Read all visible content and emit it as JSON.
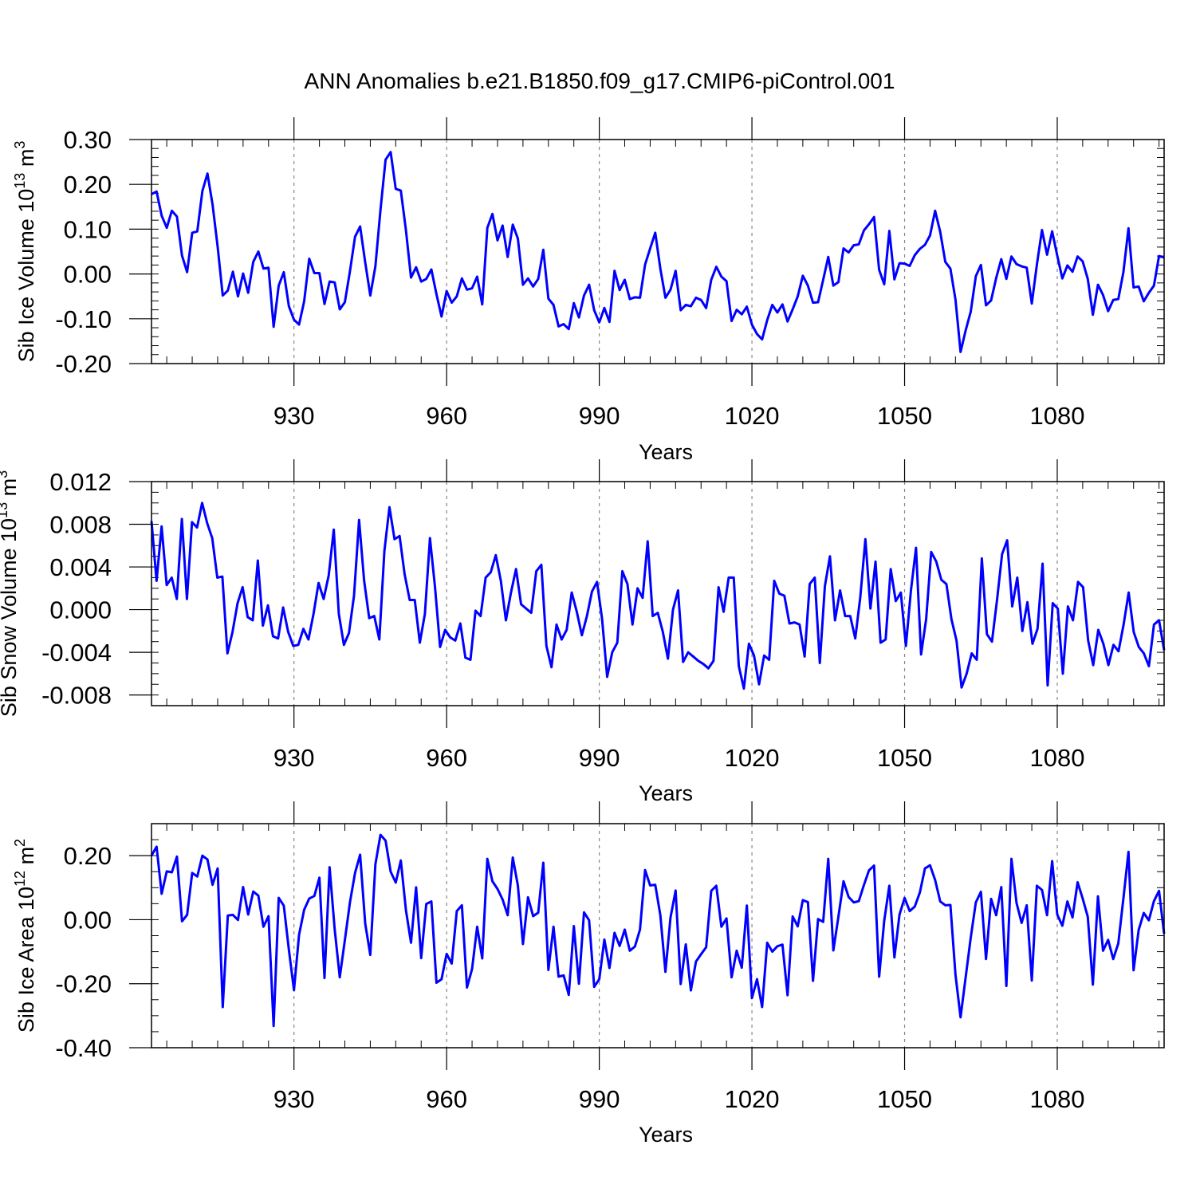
{
  "title": "ANN Anomalies b.e21.B1850.f09_g17.CMIP6-piControl.001",
  "colors": {
    "line": "#0000ff",
    "frame": "#000000",
    "grid": "#888888"
  },
  "chart_data": [
    {
      "type": "line",
      "ylabel": {
        "text": "Sib Ice Volume 10",
        "sup": "13",
        "unit": " m",
        "unit_sup": "3"
      },
      "xlabel": "Years",
      "x_start": 902,
      "x_end": 1101,
      "xlim": [
        902,
        1101
      ],
      "x_ticks": [
        930,
        960,
        990,
        1020,
        1050,
        1080
      ],
      "x_tick_labels": [
        "930",
        "960",
        "990",
        "1020",
        "1050",
        "1080"
      ],
      "ylim": [
        -0.2,
        0.3
      ],
      "y_ticks": [
        -0.2,
        -0.1,
        0.0,
        0.1,
        0.2,
        0.3
      ],
      "y_tick_labels": [
        "-0.20",
        "-0.10",
        "0.00",
        "0.10",
        "0.20",
        "0.30"
      ],
      "y_minor_step": 0.02,
      "values": [
        0.178,
        0.184,
        0.13,
        0.103,
        0.141,
        0.128,
        0.041,
        0.004,
        0.092,
        0.095,
        0.185,
        0.224,
        0.155,
        0.061,
        -0.048,
        -0.037,
        0.005,
        -0.05,
        0.001,
        -0.042,
        0.027,
        0.05,
        0.012,
        0.014,
        -0.118,
        -0.026,
        0.004,
        -0.072,
        -0.102,
        -0.113,
        -0.061,
        0.034,
        0.002,
        0.002,
        -0.067,
        -0.017,
        -0.019,
        -0.079,
        -0.063,
        0.006,
        0.083,
        0.106,
        0.026,
        -0.048,
        0.017,
        0.143,
        0.255,
        0.272,
        0.19,
        0.186,
        0.098,
        -0.008,
        0.015,
        -0.017,
        -0.011,
        0.01,
        -0.045,
        -0.095,
        -0.038,
        -0.064,
        -0.05,
        -0.01,
        -0.035,
        -0.032,
        -0.006,
        -0.068,
        0.103,
        0.134,
        0.075,
        0.108,
        0.038,
        0.11,
        0.079,
        -0.024,
        -0.01,
        -0.028,
        -0.011,
        0.054,
        -0.055,
        -0.069,
        -0.117,
        -0.112,
        -0.123,
        -0.065,
        -0.097,
        -0.048,
        -0.024,
        -0.081,
        -0.108,
        -0.076,
        -0.107,
        0.007,
        -0.036,
        -0.013,
        -0.056,
        -0.052,
        -0.053,
        0.021,
        0.057,
        0.092,
        0.012,
        -0.053,
        -0.035,
        0.007,
        -0.081,
        -0.069,
        -0.072,
        -0.053,
        -0.058,
        -0.076,
        -0.013,
        0.016,
        -0.006,
        -0.016,
        -0.105,
        -0.08,
        -0.09,
        -0.073,
        -0.113,
        -0.134,
        -0.146,
        -0.103,
        -0.069,
        -0.086,
        -0.068,
        -0.106,
        -0.079,
        -0.05,
        -0.004,
        -0.026,
        -0.064,
        -0.063,
        -0.013,
        0.038,
        -0.026,
        -0.018,
        0.057,
        0.048,
        0.064,
        0.066,
        0.097,
        0.111,
        0.127,
        0.009,
        -0.023,
        0.096,
        -0.012,
        0.024,
        0.023,
        0.018,
        0.042,
        0.056,
        0.065,
        0.086,
        0.141,
        0.094,
        0.027,
        0.012,
        -0.057,
        -0.174,
        -0.126,
        -0.084,
        -0.005,
        0.02,
        -0.07,
        -0.059,
        -0.009,
        0.033,
        -0.011,
        0.039,
        0.022,
        0.017,
        0.014,
        -0.066,
        0.021,
        0.098,
        0.043,
        0.095,
        0.041,
        -0.01,
        0.019,
        0.005,
        0.039,
        0.028,
        -0.011,
        -0.091,
        -0.024,
        -0.047,
        -0.083,
        -0.058,
        -0.056,
        0.004,
        0.102,
        -0.03,
        -0.028,
        -0.061,
        -0.042,
        -0.026,
        0.04,
        0.037
      ]
    },
    {
      "type": "line",
      "ylabel": {
        "text": "Sib Snow Volume 10",
        "sup": "13",
        "unit": " m",
        "unit_sup": "3"
      },
      "xlabel": "Years",
      "x_start": 902,
      "x_end": 1101,
      "xlim": [
        902,
        1101
      ],
      "x_ticks": [
        930,
        960,
        990,
        1020,
        1050,
        1080
      ],
      "x_tick_labels": [
        "930",
        "960",
        "990",
        "1020",
        "1050",
        "1080"
      ],
      "ylim": [
        -0.009,
        0.012
      ],
      "y_ticks": [
        -0.008,
        -0.004,
        0.0,
        0.004,
        0.008,
        0.012
      ],
      "y_tick_labels": [
        "-0.008",
        "-0.004",
        "0.000",
        "0.004",
        "0.008",
        "0.012"
      ],
      "y_minor_step": 0.001,
      "values": [
        0.0083,
        0.0027,
        0.0078,
        0.0023,
        0.003,
        0.001,
        0.0085,
        0.001,
        0.0082,
        0.0077,
        0.01,
        0.0081,
        0.0067,
        0.003,
        0.0031,
        -0.0041,
        -0.0021,
        0.0006,
        0.0021,
        -0.0007,
        -0.001,
        0.0046,
        -0.0015,
        0.0004,
        -0.0025,
        -0.0027,
        0.0002,
        -0.0021,
        -0.0034,
        -0.0033,
        -0.0018,
        -0.0028,
        -0.0004,
        0.0025,
        0.001,
        0.0032,
        0.0075,
        -0.0004,
        -0.0033,
        -0.0022,
        0.0013,
        0.0084,
        0.0027,
        -0.0008,
        -0.0006,
        -0.0028,
        0.0055,
        0.0096,
        0.0066,
        0.0069,
        0.0033,
        0.0009,
        0.0009,
        -0.0031,
        -0.0004,
        0.0067,
        0.0021,
        -0.0035,
        -0.0019,
        -0.0026,
        -0.0029,
        -0.0013,
        -0.0045,
        -0.0047,
        -0.0001,
        -0.0006,
        0.003,
        0.0035,
        0.0051,
        0.0027,
        -0.001,
        0.0016,
        0.0038,
        0.0005,
        0.0001,
        -0.0003,
        0.0036,
        0.0042,
        -0.0034,
        -0.0054,
        -0.0014,
        -0.0028,
        -0.0019,
        0.0016,
        -0.0002,
        -0.0024,
        -0.0006,
        0.0017,
        0.0026,
        -0.0009,
        -0.0063,
        -0.004,
        -0.0031,
        0.0036,
        0.0024,
        -0.0014,
        0.002,
        0.0011,
        0.0064,
        -0.0006,
        -0.0003,
        -0.0021,
        -0.0046,
        0.0,
        0.0018,
        -0.0049,
        -0.004,
        -0.0044,
        -0.0048,
        -0.0051,
        -0.0055,
        -0.0048,
        0.0021,
        -0.0002,
        0.003,
        0.003,
        -0.0053,
        -0.0074,
        -0.0032,
        -0.0043,
        -0.007,
        -0.0043,
        -0.0047,
        0.0027,
        0.0015,
        0.0013,
        -0.0013,
        -0.0012,
        -0.0014,
        -0.0044,
        0.0024,
        0.003,
        -0.005,
        0.0022,
        0.005,
        -0.001,
        0.0018,
        -0.0006,
        -0.0006,
        -0.0027,
        0.0012,
        0.0066,
        0.0001,
        0.0045,
        -0.0031,
        -0.0028,
        0.0038,
        0.0008,
        0.0016,
        -0.0034,
        0.0018,
        0.0058,
        -0.0042,
        -0.0009,
        0.0054,
        0.0045,
        0.0028,
        0.0024,
        -0.0009,
        -0.0029,
        -0.0073,
        -0.006,
        -0.0041,
        -0.0047,
        0.0048,
        -0.0023,
        -0.003,
        0.0009,
        0.0052,
        0.0065,
        0.0003,
        0.003,
        -0.002,
        0.0007,
        -0.0032,
        -0.0018,
        0.0043,
        -0.0071,
        0.0006,
        0.0001,
        -0.006,
        0.0003,
        -0.001,
        0.0026,
        0.0021,
        -0.0029,
        -0.0052,
        -0.0019,
        -0.0032,
        -0.0052,
        -0.0033,
        -0.0039,
        -0.0014,
        0.0016,
        -0.0021,
        -0.0035,
        -0.0041,
        -0.0053,
        -0.0014,
        -0.001,
        -0.0038
      ]
    },
    {
      "type": "line",
      "ylabel": {
        "text": "Sib Ice Area 10",
        "sup": "12",
        "unit": " m",
        "unit_sup": "2"
      },
      "xlabel": "Years",
      "x_start": 902,
      "x_end": 1101,
      "xlim": [
        902,
        1101
      ],
      "x_ticks": [
        930,
        960,
        990,
        1020,
        1050,
        1080
      ],
      "x_tick_labels": [
        "930",
        "960",
        "990",
        "1020",
        "1050",
        "1080"
      ],
      "ylim": [
        -0.4,
        0.3
      ],
      "y_ticks": [
        -0.4,
        -0.2,
        0.0,
        0.2
      ],
      "y_tick_labels": [
        "-0.40",
        "-0.20",
        "0.00",
        "0.20"
      ],
      "y_minor_step": 0.05,
      "values": [
        0.2,
        0.228,
        0.081,
        0.151,
        0.148,
        0.197,
        -0.005,
        0.015,
        0.146,
        0.135,
        0.2,
        0.188,
        0.109,
        0.16,
        -0.273,
        0.013,
        0.015,
        -0.001,
        0.102,
        0.016,
        0.088,
        0.075,
        -0.022,
        0.011,
        -0.332,
        0.068,
        0.044,
        -0.094,
        -0.22,
        -0.047,
        0.031,
        0.066,
        0.074,
        0.131,
        -0.182,
        0.164,
        -0.03,
        -0.18,
        -0.064,
        0.054,
        0.146,
        0.203,
        -0.012,
        -0.11,
        0.173,
        0.265,
        0.247,
        0.15,
        0.116,
        0.185,
        0.03,
        -0.072,
        0.101,
        -0.12,
        0.049,
        0.057,
        -0.197,
        -0.186,
        -0.107,
        -0.137,
        0.027,
        0.045,
        -0.212,
        -0.154,
        -0.022,
        -0.121,
        0.19,
        0.12,
        0.096,
        0.063,
        0.014,
        0.194,
        0.107,
        -0.076,
        0.07,
        0.011,
        0.022,
        0.178,
        -0.157,
        -0.022,
        -0.178,
        -0.174,
        -0.235,
        -0.02,
        -0.2,
        0.023,
        -0.002,
        -0.21,
        -0.186,
        -0.062,
        -0.151,
        -0.041,
        -0.082,
        -0.031,
        -0.097,
        -0.084,
        -0.031,
        0.155,
        0.107,
        0.109,
        0.014,
        -0.163,
        0.007,
        0.091,
        -0.201,
        -0.077,
        -0.221,
        -0.131,
        -0.108,
        -0.086,
        0.09,
        0.106,
        -0.022,
        0.004,
        -0.18,
        -0.097,
        -0.15,
        0.044,
        -0.245,
        -0.186,
        -0.273,
        -0.072,
        -0.1,
        -0.083,
        -0.078,
        -0.236,
        0.01,
        -0.021,
        0.061,
        0.055,
        -0.191,
        0.002,
        -0.007,
        0.19,
        -0.096,
        0.01,
        0.12,
        0.071,
        0.054,
        0.058,
        0.108,
        0.154,
        0.169,
        -0.178,
        -0.003,
        0.106,
        -0.118,
        0.016,
        0.068,
        0.027,
        0.041,
        0.085,
        0.16,
        0.17,
        0.124,
        0.057,
        0.045,
        0.046,
        -0.172,
        -0.305,
        -0.18,
        -0.056,
        0.054,
        0.087,
        -0.123,
        0.065,
        0.014,
        0.102,
        -0.207,
        0.19,
        0.052,
        -0.01,
        0.045,
        -0.19,
        0.106,
        0.093,
        0.014,
        0.183,
        0.016,
        -0.019,
        0.057,
        0.007,
        0.117,
        0.066,
        0.009,
        -0.203,
        0.073,
        -0.097,
        -0.063,
        -0.123,
        -0.074,
        0.066,
        0.212,
        -0.158,
        -0.032,
        0.021,
        -0.002,
        0.058,
        0.09,
        -0.044
      ]
    }
  ]
}
